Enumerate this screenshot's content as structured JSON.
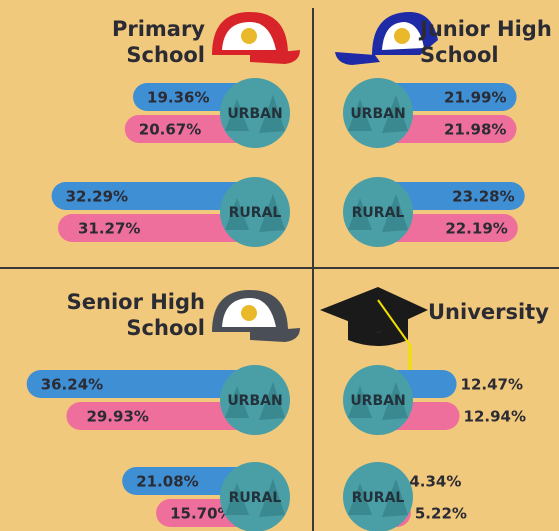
{
  "chart_data": [
    {
      "type": "bar",
      "title": [
        "Primary",
        "School"
      ],
      "categories": [
        "URBAN",
        "RURAL"
      ],
      "series": [
        {
          "color": "#3f8fd4",
          "values": [
            19.36,
            32.29
          ],
          "value_labels": [
            "19.36%",
            "32.29%"
          ]
        },
        {
          "color": "#ef6f9c",
          "values": [
            20.67,
            31.27
          ],
          "value_labels": [
            "20.67%",
            "31.27%"
          ]
        }
      ]
    },
    {
      "type": "bar",
      "title": [
        "Junior High",
        "School"
      ],
      "categories": [
        "URBAN",
        "RURAL"
      ],
      "series": [
        {
          "color": "#3f8fd4",
          "values": [
            21.99,
            23.28
          ],
          "value_labels": [
            "21.99%",
            "23.28%"
          ]
        },
        {
          "color": "#ef6f9c",
          "values": [
            21.98,
            22.19
          ],
          "value_labels": [
            "21.98%",
            "22.19%"
          ]
        }
      ]
    },
    {
      "type": "bar",
      "title": [
        "Senior High",
        "School"
      ],
      "categories": [
        "URBAN",
        "RURAL"
      ],
      "series": [
        {
          "color": "#3f8fd4",
          "values": [
            36.24,
            21.08
          ],
          "value_labels": [
            "36.24%",
            "21.08%"
          ]
        },
        {
          "color": "#ef6f9c",
          "values": [
            29.93,
            15.7
          ],
          "value_labels": [
            "29.93%",
            "15.70%"
          ]
        }
      ]
    },
    {
      "type": "bar",
      "title": [
        "University"
      ],
      "categories": [
        "URBAN",
        "RURAL"
      ],
      "series": [
        {
          "color": "#3f8fd4",
          "values": [
            12.47,
            4.34
          ],
          "value_labels": [
            "12.47%",
            "4.34%"
          ]
        },
        {
          "color": "#ef6f9c",
          "values": [
            12.94,
            5.22
          ],
          "value_labels": [
            "12.94%",
            "5.22%"
          ]
        }
      ]
    }
  ]
}
